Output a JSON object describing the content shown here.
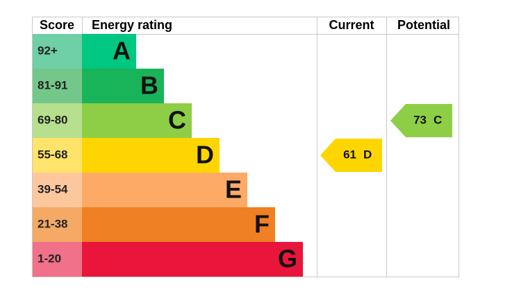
{
  "header": {
    "score": "Score",
    "energy_rating": "Energy rating",
    "current": "Current",
    "potential": "Potential"
  },
  "bands": [
    {
      "range": "92+",
      "letter": "A",
      "color": "#00c781",
      "light": "#6fcfa5"
    },
    {
      "range": "81-91",
      "letter": "B",
      "color": "#19b459",
      "light": "#74c78a"
    },
    {
      "range": "69-80",
      "letter": "C",
      "color": "#8dce46",
      "light": "#b6e08d"
    },
    {
      "range": "55-68",
      "letter": "D",
      "color": "#ffd500",
      "light": "#ffe36a"
    },
    {
      "range": "39-54",
      "letter": "E",
      "color": "#fcaa65",
      "light": "#fdc79d"
    },
    {
      "range": "21-38",
      "letter": "F",
      "color": "#ef8023",
      "light": "#f4a965"
    },
    {
      "range": "1-20",
      "letter": "G",
      "color": "#e9153b",
      "light": "#f07189"
    }
  ],
  "current": {
    "score": 61,
    "rating": "D"
  },
  "potential": {
    "score": 73,
    "rating": "C"
  }
}
